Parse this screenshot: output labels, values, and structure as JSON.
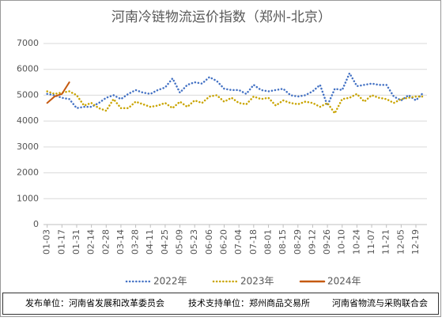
{
  "chart_data": {
    "type": "line",
    "title": "河南冷链物流运价指数（郑州-北京）",
    "categories": [
      "01-03",
      null,
      "01-17",
      null,
      "01-31",
      null,
      "02-14",
      null,
      "02-28",
      null,
      "03-14",
      null,
      "03-28",
      null,
      "04-11",
      null,
      "04-25",
      null,
      "05-09",
      null,
      "05-23",
      null,
      "06-06",
      null,
      "06-20",
      null,
      "07-04",
      null,
      "07-18",
      null,
      "08-01",
      null,
      "08-15",
      null,
      "08-29",
      null,
      "09-12",
      null,
      "09-26",
      null,
      "10-10",
      null,
      "10-24",
      null,
      "11-07",
      null,
      "11-21",
      null,
      "12-05",
      null,
      "12-19",
      null
    ],
    "series": [
      {
        "name": "2022年",
        "color": "#4472c4",
        "style": "dotted",
        "values": [
          5050,
          5000,
          4900,
          4850,
          4500,
          4550,
          4550,
          4700,
          4900,
          5000,
          4850,
          5050,
          5200,
          5100,
          5050,
          5200,
          5300,
          5650,
          5100,
          5400,
          5500,
          5450,
          5700,
          5550,
          5250,
          5200,
          5200,
          5050,
          5400,
          5200,
          5150,
          5200,
          5250,
          5000,
          4950,
          5000,
          5150,
          5400,
          4600,
          5250,
          5200,
          5850,
          5350,
          5400,
          5450,
          5400,
          5400,
          4950,
          4800,
          5000,
          4800,
          5100
        ]
      },
      {
        "name": "2023年",
        "color": "#c9a400",
        "style": "dotted",
        "values": [
          5150,
          5050,
          5100,
          5150,
          5000,
          4600,
          4700,
          4500,
          4400,
          4850,
          4500,
          4500,
          4750,
          4650,
          4550,
          4600,
          4700,
          4500,
          4750,
          4550,
          4800,
          4700,
          4950,
          5000,
          4750,
          4900,
          4700,
          4650,
          4950,
          4850,
          4900,
          4600,
          4800,
          4700,
          4650,
          4750,
          4700,
          4550,
          4700,
          4300,
          4850,
          4900,
          5050,
          4750,
          5000,
          4900,
          4850,
          4700,
          4850,
          4900,
          4950,
          4950
        ]
      },
      {
        "name": "2024年",
        "color": "#c55a11",
        "style": "solid",
        "values": [
          4700,
          4950,
          5050,
          5500,
          null,
          null,
          null,
          null,
          null,
          null,
          null,
          null,
          null,
          null,
          null,
          null,
          null,
          null,
          null,
          null,
          null,
          null,
          null,
          null,
          null,
          null,
          null,
          null,
          null,
          null,
          null,
          null,
          null,
          null,
          null,
          null,
          null,
          null,
          null,
          null,
          null,
          null,
          null,
          null,
          null,
          null,
          null,
          null,
          null,
          null,
          null,
          null
        ]
      }
    ],
    "ylim": [
      0,
      7000
    ],
    "yticks": [
      0,
      1000,
      2000,
      3000,
      4000,
      5000,
      6000,
      7000
    ],
    "grid": true,
    "legend": "bottom",
    "footer": [
      "发布单位：河南省发展和改革委员会",
      "技术支持单位：郑州商品交易所",
      "河南省物流与采购联合会"
    ]
  }
}
